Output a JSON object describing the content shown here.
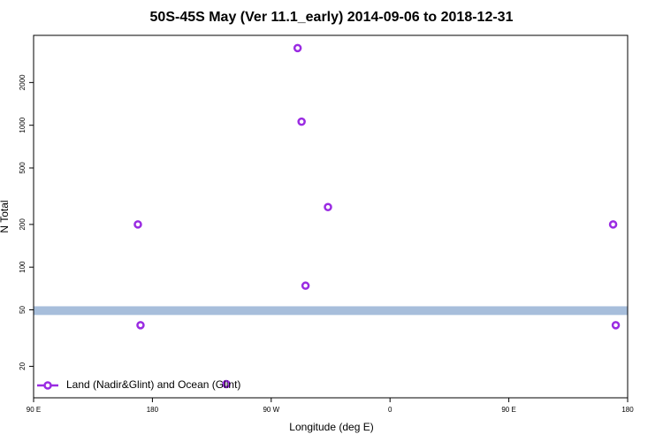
{
  "chart_data": {
    "type": "scatter",
    "title": "50S-45S May (Ver 11.1_early)   2014-09-06 to 2018-12-31",
    "x_label": "Longitude (deg E)",
    "y_label": "N Total",
    "y_scale": "log",
    "xlim": [
      90,
      540
    ],
    "ylim": [
      12,
      4300
    ],
    "xticks": [
      {
        "value": 90,
        "label": "90 E"
      },
      180,
      {
        "value": 270,
        "label": "90 W"
      },
      {
        "value": 360,
        "label": "0"
      },
      {
        "value": 450,
        "label": "90 E"
      },
      {
        "value": 540,
        "label": "180"
      }
    ],
    "yticks": [
      20,
      50,
      100,
      200,
      500,
      1000,
      2000
    ],
    "band": [
      46,
      53
    ],
    "band_color": "#a7bedb",
    "legend": "bottom-left",
    "series": [
      {
        "name": "Land (Nadir&Glint) and Ocean (Glint)",
        "color": "#9a2be2",
        "x": [
          169,
          171,
          236,
          290,
          293,
          296,
          313,
          529,
          531
        ],
        "values": [
          200,
          39,
          15,
          3500,
          1060,
          74,
          265,
          200,
          39
        ]
      }
    ]
  }
}
